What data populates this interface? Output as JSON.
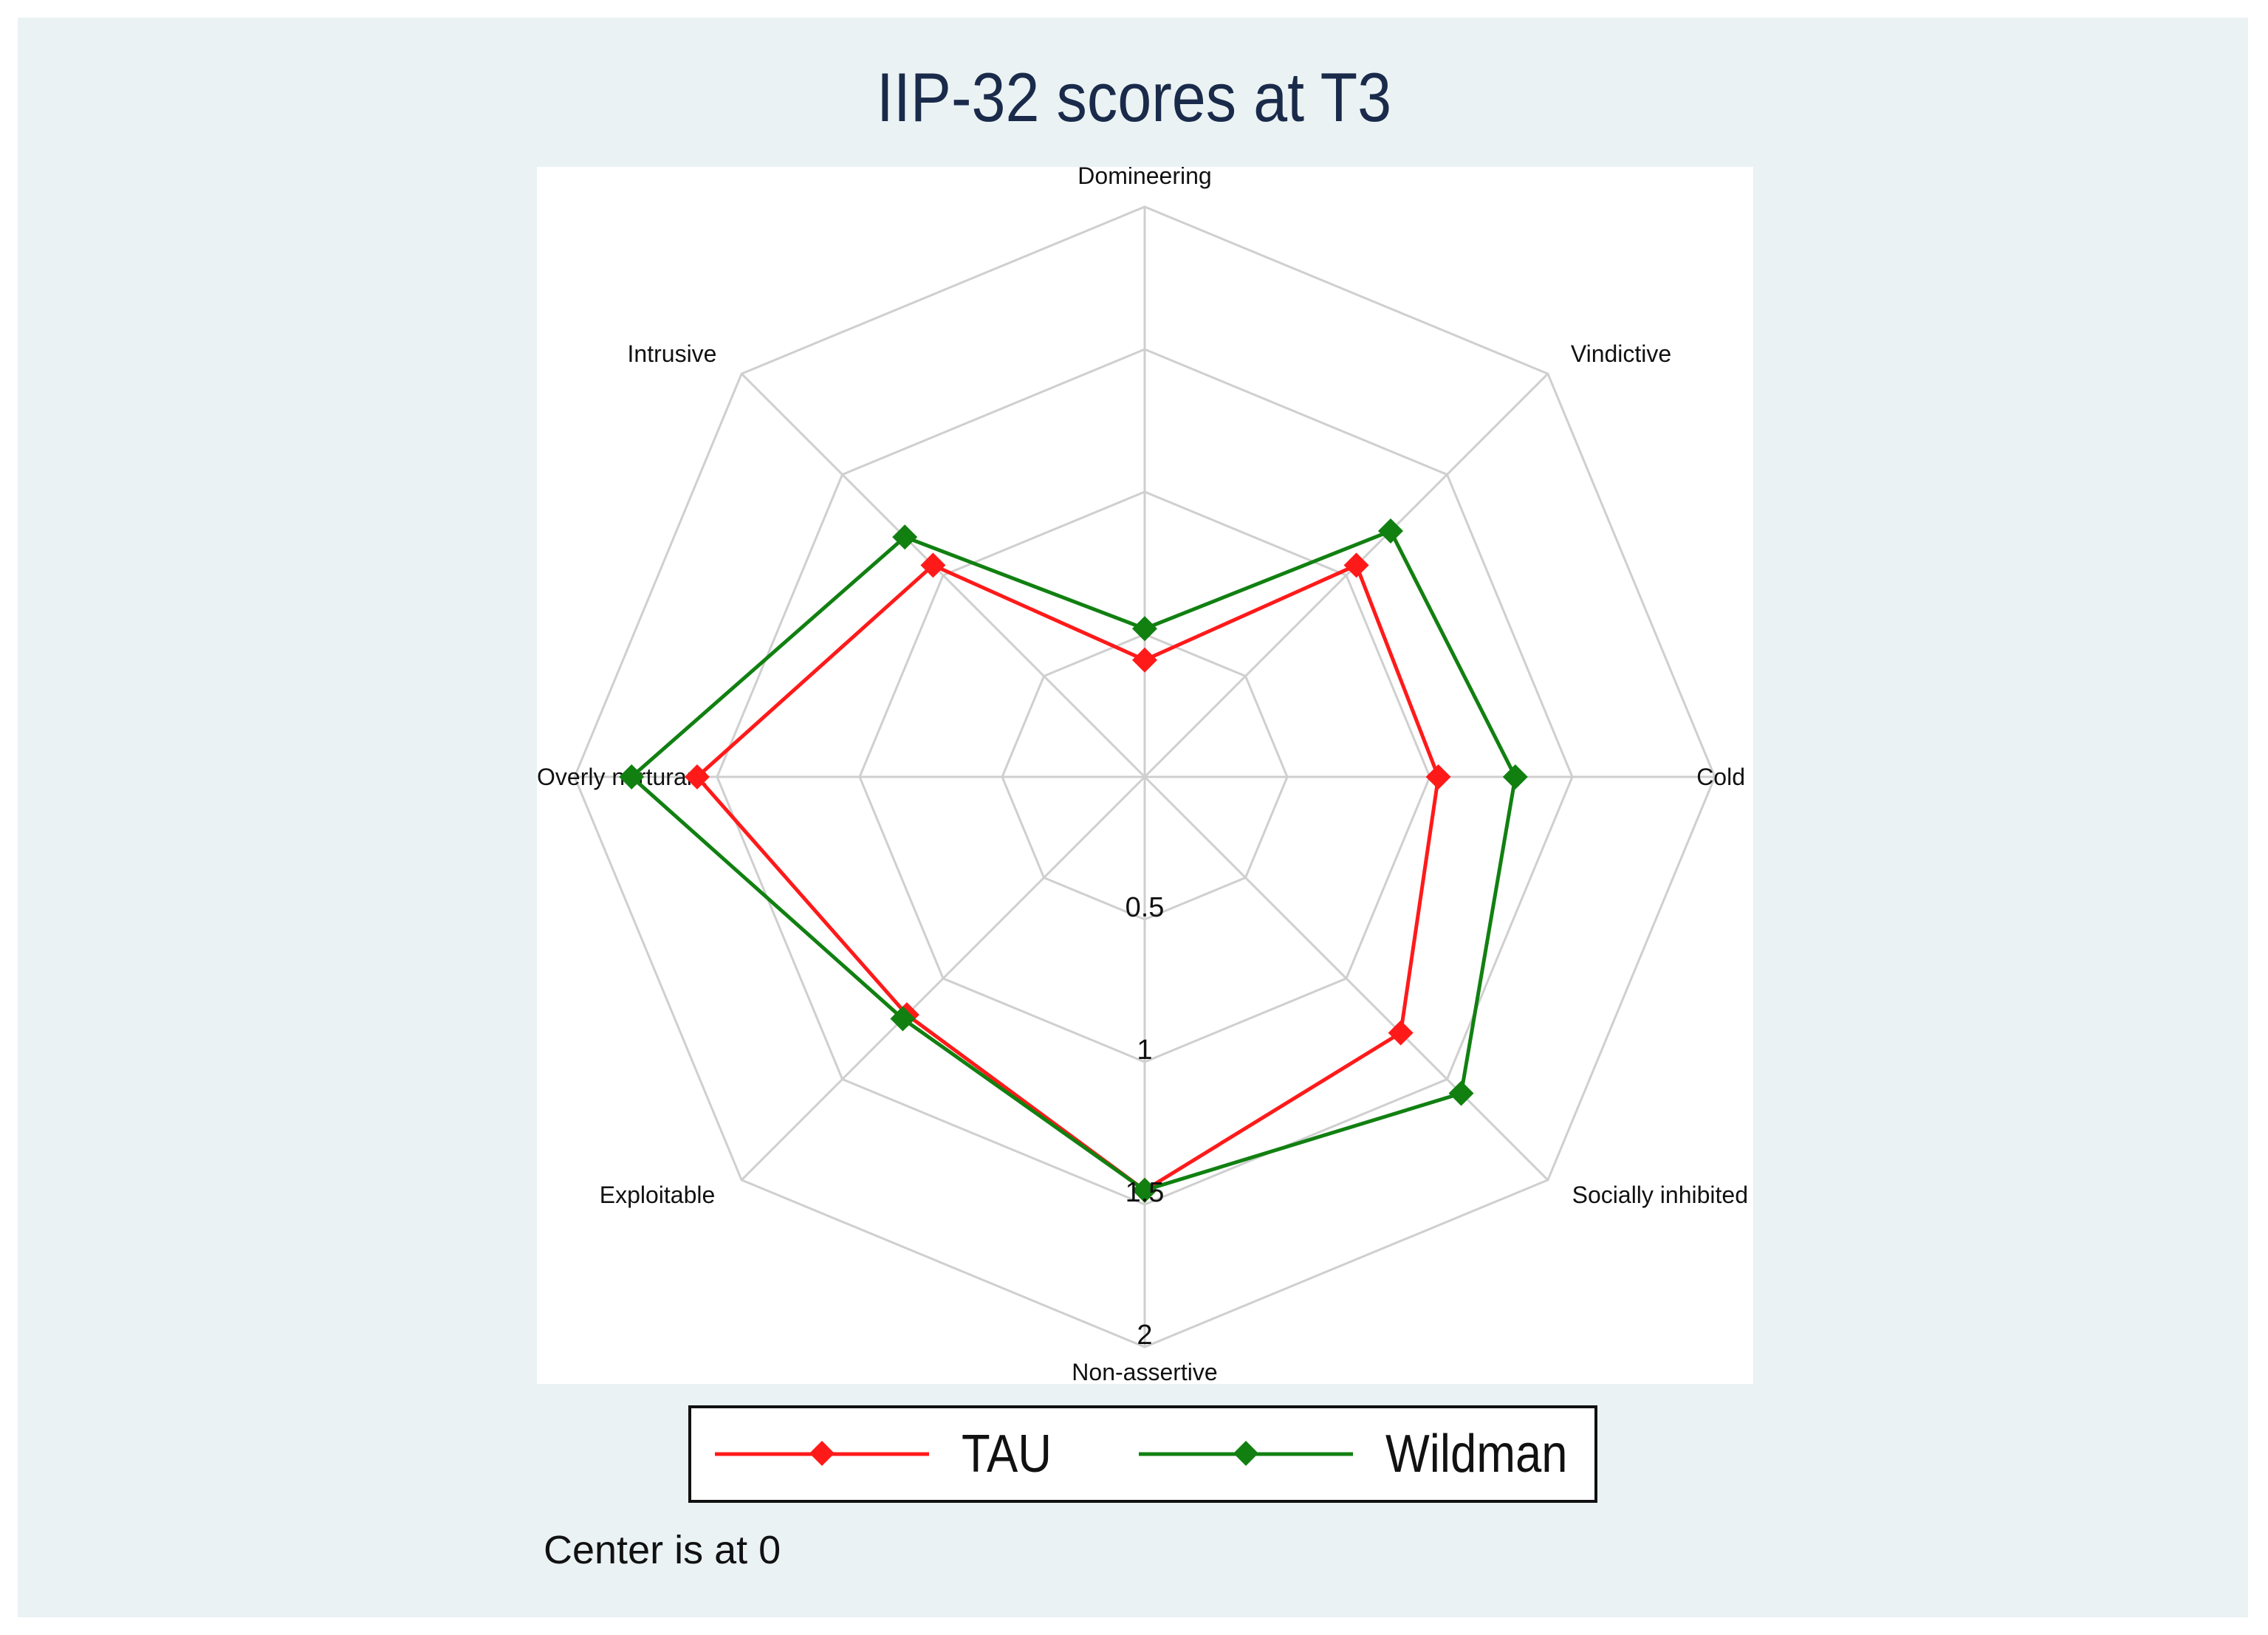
{
  "chart_data": {
    "type": "radar",
    "title": "IIP-32 scores at T3",
    "axes": [
      "Domineering",
      "Vindictive",
      "Cold",
      "Socially inhibited",
      "Non-assertive",
      "Exploitable",
      "Overly nurturant",
      "Intrusive"
    ],
    "radial_ticks": [
      "0.5",
      "1",
      "1.5",
      "2"
    ],
    "rmax": 2,
    "grid_rings": [
      0.5,
      1.0,
      1.5,
      2.0
    ],
    "grid": true,
    "series": [
      {
        "name": "TAU",
        "color": "#ff1a1a",
        "marker": "diamond",
        "values": [
          0.41,
          1.05,
          1.03,
          1.27,
          1.45,
          1.18,
          1.57,
          1.05
        ]
      },
      {
        "name": "Wildman",
        "color": "#118011",
        "marker": "diamond",
        "values": [
          0.52,
          1.22,
          1.3,
          1.57,
          1.45,
          1.2,
          1.8,
          1.19
        ]
      }
    ],
    "legend_position": "bottom",
    "note": "Center is at 0"
  }
}
